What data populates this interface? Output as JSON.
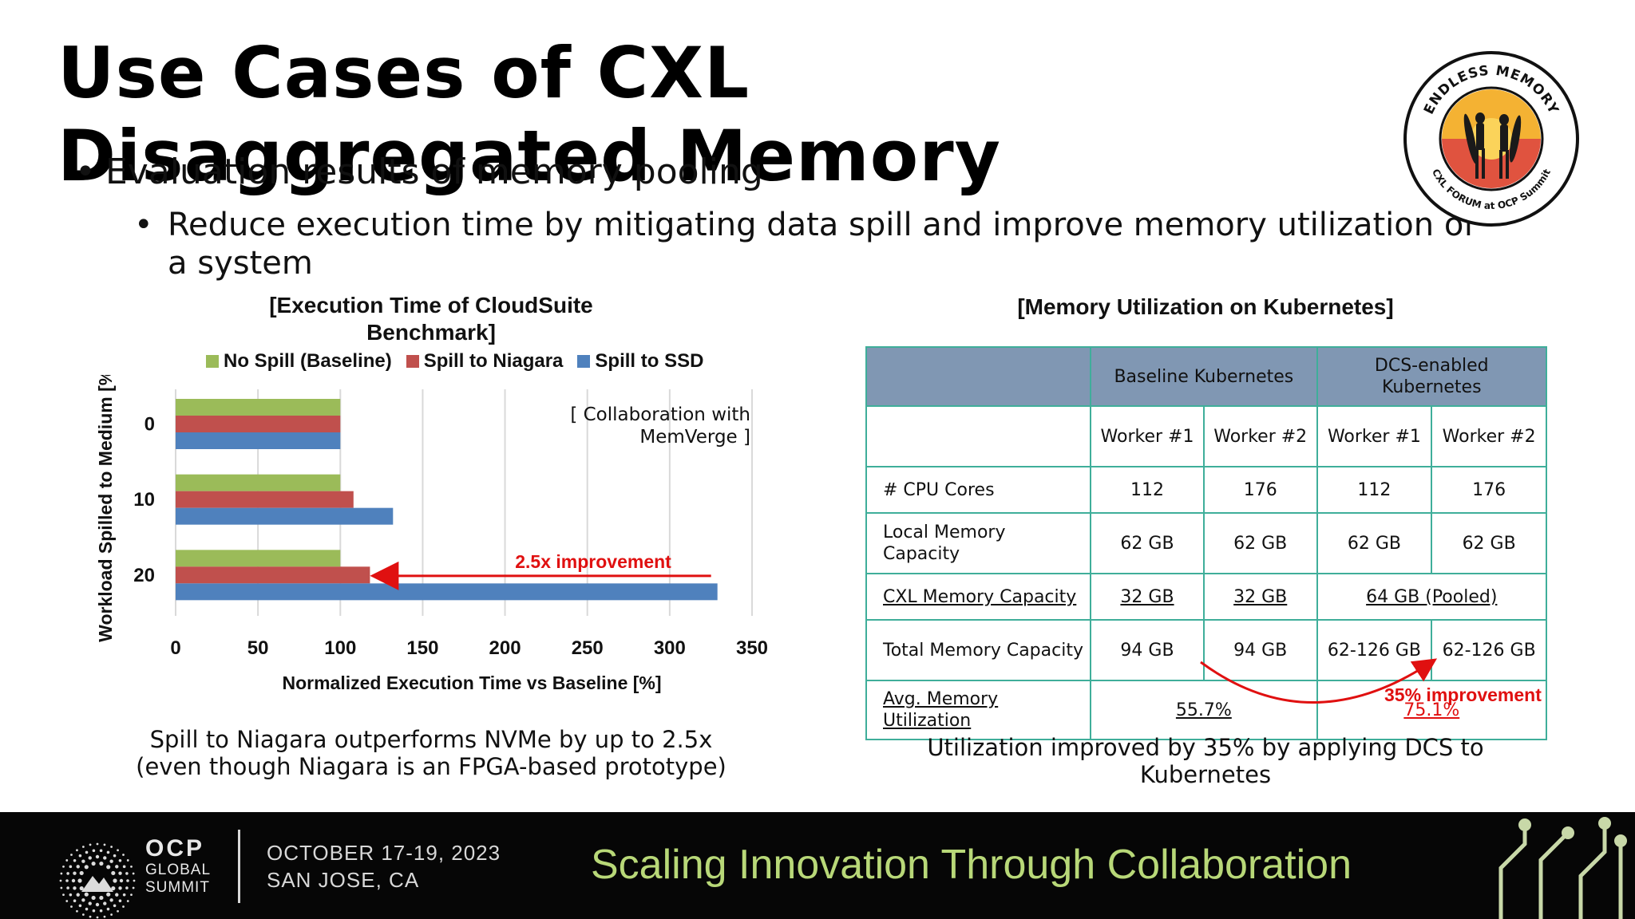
{
  "slide": {
    "title": "Use Cases of CXL Disaggregated Memory",
    "bullet1": "Evaluation results of memory pooling",
    "bullet2": "Reduce execution time by mitigating data spill and improve memory utilization of a system",
    "bullet_glyph": "•"
  },
  "logo": {
    "ring_top": "ENDLESS MEMORY",
    "ring_bottom": "CXL FORUM at OCP Summit",
    "icon": "surfers-sunset-badge"
  },
  "chart": {
    "title": "[Execution Time of CloudSuite Benchmark]",
    "note": "[ Collaboration with MemVerge ]",
    "annotation": "2.5x improvement",
    "caption": "Spill to Niagara outperforms NVMe by up to 2.5x (even though Niagara is an FPGA-based prototype)"
  },
  "chart_data": {
    "type": "bar",
    "orientation": "horizontal",
    "title": "[Execution Time of CloudSuite Benchmark]",
    "xlabel": "Normalized Execution Time vs Baseline [%]",
    "ylabel": "Workload Spilled to Medium [%]",
    "categories": [
      "0",
      "10",
      "20"
    ],
    "xlim": [
      0,
      350
    ],
    "xticks": [
      "0",
      "50",
      "100",
      "150",
      "200",
      "250",
      "300",
      "350"
    ],
    "grid": true,
    "legend_position": "top",
    "series": [
      {
        "name": "No Spill (Baseline)",
        "color": "#9bbb59",
        "values": [
          100,
          100,
          100
        ]
      },
      {
        "name": "Spill to Niagara",
        "color": "#c0504d",
        "values": [
          100,
          108,
          118
        ]
      },
      {
        "name": "Spill to SSD",
        "color": "#4f81bd",
        "values": [
          100,
          132,
          329
        ]
      }
    ]
  },
  "table": {
    "title": "[Memory Utilization on Kubernetes]",
    "header": [
      "",
      "Baseline Kubernetes",
      "DCS-enabled Kubernetes"
    ],
    "workers": [
      "Worker #1",
      "Worker #2",
      "Worker #1",
      "Worker #2"
    ],
    "rows": {
      "cpu": {
        "label": "# CPU Cores",
        "values": [
          "112",
          "176",
          "112",
          "176"
        ]
      },
      "local": {
        "label": "Local Memory Capacity",
        "values": [
          "62 GB",
          "62 GB",
          "62 GB",
          "62 GB"
        ]
      },
      "cxl": {
        "label": "CXL Memory Capacity",
        "values": [
          "32 GB",
          "32 GB",
          "64 GB (Pooled)"
        ]
      },
      "total": {
        "label": "Total Memory Capacity",
        "values": [
          "94 GB",
          "94 GB",
          "62-126 GB",
          "62-126 GB"
        ]
      },
      "util": {
        "label": "Avg. Memory Utilization",
        "values": [
          "55.7%",
          "75.1%"
        ]
      }
    },
    "improvement": "35% improvement",
    "caption": "Utilization improved by 35% by applying DCS to Kubernetes",
    "header_color": "#8097b3",
    "border_color": "#3fae9a"
  },
  "footer": {
    "org_line1": "OCP",
    "org_line2": "GLOBAL",
    "org_line3": "SUMMIT",
    "date": "OCTOBER 17-19, 2023",
    "location": "SAN JOSE, CA",
    "tagline": "Scaling Innovation Through Collaboration",
    "tagline_color": "#b8d878"
  }
}
